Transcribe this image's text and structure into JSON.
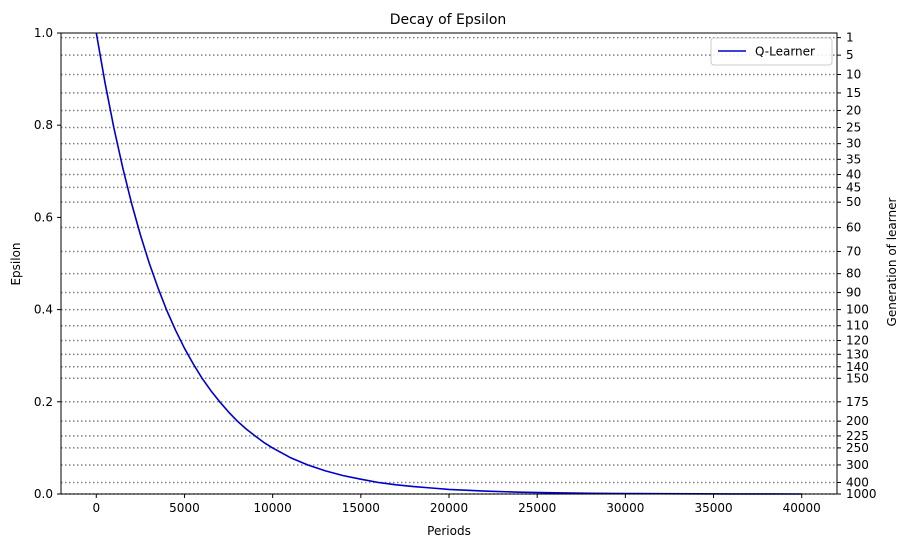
{
  "chart_data": {
    "type": "line",
    "title": "Decay of Epsilon",
    "xlabel": "Periods",
    "ylabel": "Epsilon",
    "y2label": "Generation of learner",
    "xlim": [
      -2000,
      42000
    ],
    "ylim": [
      0,
      1.0
    ],
    "x_ticks": [
      0,
      5000,
      10000,
      15000,
      20000,
      25000,
      30000,
      35000,
      40000
    ],
    "y_ticks": [
      0.0,
      0.2,
      0.4,
      0.6,
      0.8,
      1.0
    ],
    "grid": false,
    "legend": {
      "position": "top-right",
      "entries": [
        "Q-Learner"
      ]
    },
    "series": [
      {
        "name": "Q-Learner",
        "color": "#0000cc",
        "x": [
          0,
          500,
          1000,
          1500,
          2000,
          2500,
          3000,
          3500,
          4000,
          4500,
          5000,
          5500,
          6000,
          6500,
          7000,
          7500,
          8000,
          8500,
          9000,
          9500,
          10000,
          11000,
          12000,
          13000,
          14000,
          15000,
          16000,
          17000,
          18000,
          19000,
          20000,
          22000,
          24000,
          26000,
          28000,
          30000,
          32000,
          34000,
          36000,
          38000,
          40000
        ],
        "y": [
          1.0,
          0.891,
          0.794,
          0.708,
          0.631,
          0.562,
          0.501,
          0.447,
          0.398,
          0.355,
          0.316,
          0.282,
          0.251,
          0.224,
          0.2,
          0.178,
          0.158,
          0.141,
          0.126,
          0.112,
          0.1,
          0.079,
          0.063,
          0.05,
          0.04,
          0.032,
          0.025,
          0.02,
          0.016,
          0.013,
          0.01,
          0.0063,
          0.004,
          0.0025,
          0.0016,
          0.001,
          0.00063,
          0.0004,
          0.00025,
          0.00016,
          0.0001
        ]
      }
    ],
    "generations": {
      "line_style": "dotted",
      "line_color": "#808080",
      "levels": [
        {
          "label": "1",
          "epsilon": 0.99
        },
        {
          "label": "5",
          "epsilon": 0.952
        },
        {
          "label": "10",
          "epsilon": 0.91
        },
        {
          "label": "15",
          "epsilon": 0.87
        },
        {
          "label": "20",
          "epsilon": 0.832
        },
        {
          "label": "25",
          "epsilon": 0.795
        },
        {
          "label": "30",
          "epsilon": 0.76
        },
        {
          "label": "35",
          "epsilon": 0.726
        },
        {
          "label": "40",
          "epsilon": 0.693
        },
        {
          "label": "45",
          "epsilon": 0.665
        },
        {
          "label": "50",
          "epsilon": 0.633
        },
        {
          "label": "60",
          "epsilon": 0.578
        },
        {
          "label": "70",
          "epsilon": 0.526
        },
        {
          "label": "80",
          "epsilon": 0.478
        },
        {
          "label": "90",
          "epsilon": 0.437
        },
        {
          "label": "100",
          "epsilon": 0.4
        },
        {
          "label": "110",
          "epsilon": 0.365
        },
        {
          "label": "120",
          "epsilon": 0.333
        },
        {
          "label": "130",
          "epsilon": 0.303
        },
        {
          "label": "140",
          "epsilon": 0.276
        },
        {
          "label": "150",
          "epsilon": 0.251
        },
        {
          "label": "175",
          "epsilon": 0.2
        },
        {
          "label": "200",
          "epsilon": 0.158
        },
        {
          "label": "225",
          "epsilon": 0.126
        },
        {
          "label": "250",
          "epsilon": 0.1
        },
        {
          "label": "300",
          "epsilon": 0.063
        },
        {
          "label": "400",
          "epsilon": 0.025
        },
        {
          "label": "1000",
          "epsilon": 0.0
        }
      ]
    }
  }
}
